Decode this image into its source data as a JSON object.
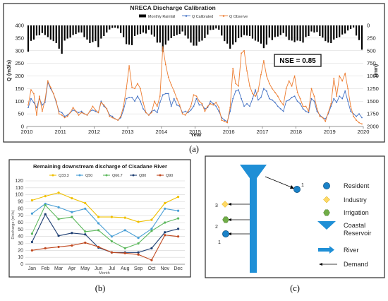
{
  "panel_labels": {
    "a": "(a)",
    "b": "(b)",
    "c": "(c)"
  },
  "chart_data": [
    {
      "type": "bar+line",
      "title": "NRECA Discharge Calibration",
      "xlabel": "Year",
      "ylabel": "Q (m3/s)",
      "ylabel_right": "(mm)",
      "x_ticks": [
        "2010",
        "2011",
        "2012",
        "2013",
        "2014",
        "2015",
        "2016",
        "2017",
        "2018",
        "2019",
        "2020"
      ],
      "y_ticks": [
        "0",
        "50",
        "100",
        "150",
        "200",
        "250",
        "300",
        "350",
        "400"
      ],
      "y2_ticks": [
        "0",
        "250",
        "500",
        "750",
        "1000",
        "1250",
        "1500",
        "1750",
        "2000"
      ],
      "ylim": [
        0,
        400
      ],
      "y2lim": [
        0,
        2000
      ],
      "xlim": [
        2010,
        2020
      ],
      "annotation": "NSE = 0.85",
      "legend_position": "top",
      "colors": {
        "rainfall": "#000000",
        "calibrated": "#4472c4",
        "observed": "#ed7d31"
      },
      "series": [
        {
          "name": "Monthly Rainfall",
          "kind": "inverted-bar",
          "start": "2010-01",
          "values": [
            520,
            305,
            280,
            200,
            195,
            150,
            190,
            230,
            280,
            310,
            350,
            460,
            560,
            300,
            260,
            240,
            190,
            170,
            140,
            140,
            230,
            280,
            350,
            330,
            310,
            430,
            260,
            210,
            140,
            80,
            50,
            45,
            60,
            150,
            230,
            370,
            380,
            390,
            210,
            180,
            170,
            140,
            160,
            85,
            180,
            220,
            340,
            340,
            520,
            380,
            300,
            250,
            210,
            190,
            170,
            120,
            200,
            260,
            340,
            400,
            400,
            320,
            300,
            250,
            180,
            90,
            85,
            60,
            85,
            200,
            310,
            360,
            460,
            380,
            330,
            250,
            230,
            190,
            200,
            210,
            260,
            300,
            320,
            360,
            450,
            380,
            240,
            290,
            230,
            220,
            190,
            150,
            220,
            290,
            300,
            330,
            300,
            310,
            340,
            230,
            210,
            120,
            140,
            130,
            210,
            240,
            310,
            340,
            350,
            280,
            250,
            230,
            180,
            160,
            100,
            70,
            40,
            200,
            290,
            480
          ]
        },
        {
          "name": "Q Calibrated",
          "start": "2010-01",
          "values": [
            75,
            110,
            95,
            75,
            110,
            85,
            95,
            175,
            150,
            130,
            95,
            60,
            55,
            40,
            45,
            55,
            65,
            60,
            55,
            60,
            50,
            45,
            60,
            65,
            60,
            55,
            100,
            80,
            70,
            45,
            40,
            30,
            25,
            35,
            65,
            110,
            115,
            115,
            100,
            120,
            100,
            70,
            55,
            45,
            60,
            65,
            55,
            95,
            125,
            130,
            130,
            80,
            110,
            85,
            80,
            55,
            60,
            55,
            65,
            80,
            110,
            85,
            85,
            70,
            75,
            100,
            90,
            80,
            60,
            35,
            25,
            20,
            60,
            110,
            140,
            145,
            110,
            80,
            90,
            80,
            110,
            145,
            105,
            115,
            150,
            140,
            110,
            105,
            95,
            80,
            70,
            60,
            100,
            105,
            115,
            120,
            100,
            90,
            70,
            60,
            55,
            110,
            100,
            60,
            45,
            35,
            30,
            50,
            80,
            110,
            95,
            120,
            110,
            140,
            100,
            60,
            50,
            40,
            50,
            35
          ]
        },
        {
          "name": "Q Observe",
          "start": "2010-01",
          "values": [
            85,
            145,
            130,
            45,
            120,
            60,
            105,
            180,
            155,
            130,
            100,
            50,
            45,
            35,
            40,
            55,
            75,
            60,
            45,
            55,
            50,
            45,
            60,
            80,
            65,
            55,
            95,
            85,
            70,
            40,
            35,
            30,
            25,
            40,
            80,
            150,
            240,
            155,
            150,
            170,
            150,
            95,
            55,
            45,
            55,
            100,
            80,
            120,
            315,
            245,
            195,
            165,
            140,
            110,
            85,
            50,
            45,
            60,
            80,
            125,
            120,
            100,
            90,
            60,
            80,
            90,
            85,
            95,
            75,
            25,
            20,
            15,
            75,
            230,
            170,
            160,
            290,
            300,
            220,
            160,
            130,
            120,
            140,
            205,
            260,
            200,
            170,
            150,
            135,
            120,
            100,
            85,
            150,
            180,
            160,
            200,
            135,
            110,
            80,
            80,
            60,
            150,
            120,
            70,
            40,
            35,
            20,
            55,
            90,
            190,
            120,
            200,
            180,
            210,
            150,
            80,
            40,
            25,
            15,
            10
          ]
        }
      ]
    },
    {
      "type": "line",
      "title": "Remaining downstream discharge of Cisadane River",
      "xlabel": "Month",
      "ylabel": "Discharge (m³/s)",
      "ylim": [
        0,
        120
      ],
      "y_ticks": [
        "0",
        "10",
        "20",
        "30",
        "40",
        "50",
        "60",
        "70",
        "80",
        "90",
        "100",
        "110",
        "120"
      ],
      "categories": [
        "Jan",
        "Feb",
        "Mar",
        "Apr",
        "May",
        "Jun",
        "Jul",
        "Aug",
        "Sep",
        "Oct",
        "Nov",
        "Dec"
      ],
      "legend_position": "top",
      "series": [
        {
          "name": "Q33.3",
          "color": "#f0c000",
          "values": [
            92,
            98,
            103,
            95,
            88,
            68,
            68,
            67,
            61,
            64,
            88,
            97
          ]
        },
        {
          "name": "Q50",
          "color": "#4a9fd6",
          "values": [
            73,
            87,
            82,
            75,
            80,
            59,
            40,
            49,
            38,
            51,
            80,
            77
          ]
        },
        {
          "name": "Q66.7",
          "color": "#5cb85c",
          "values": [
            44,
            85,
            65,
            68,
            47,
            49,
            33,
            23,
            30,
            48,
            60,
            66
          ]
        },
        {
          "name": "Q80",
          "color": "#1f3f73",
          "values": [
            32,
            72,
            41,
            45,
            43,
            24,
            17,
            17,
            17,
            23,
            46,
            51
          ]
        },
        {
          "name": "Q90",
          "color": "#c0481f",
          "values": [
            20,
            23,
            25,
            27,
            31,
            25,
            17,
            16,
            14,
            6,
            42,
            40
          ]
        }
      ]
    }
  ],
  "diagram": {
    "legend": [
      {
        "label": "Resident",
        "icon": "circle-icon"
      },
      {
        "label": "Industry",
        "icon": "diamond-icon"
      },
      {
        "label": "Irrigation",
        "icon": "hexagon-icon"
      },
      {
        "label": "Coastal",
        "icon": "triangle-icon"
      },
      {
        "label": "Reservoir",
        "icon": ""
      },
      {
        "label": "River",
        "icon": "thick-arrow-icon"
      },
      {
        "label": "Demand",
        "icon": "thin-arrow-icon"
      }
    ],
    "node_numbers": [
      "1",
      "2",
      "3",
      "1"
    ],
    "colors": {
      "resident": "#1a82c8",
      "industry": "#ffd966",
      "irrigation": "#70ad47",
      "river": "#1f8fd6"
    }
  }
}
